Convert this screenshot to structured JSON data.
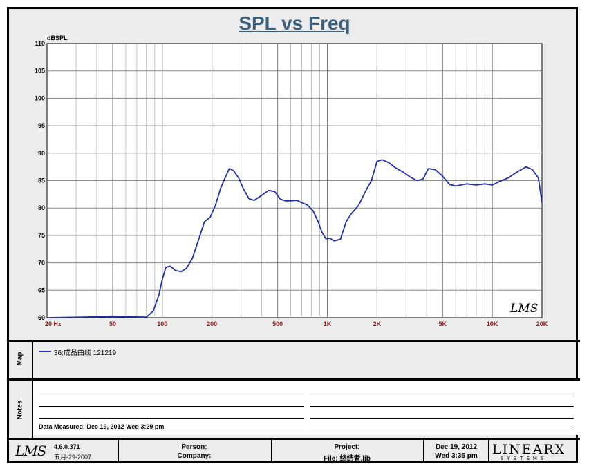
{
  "chart_data": {
    "type": "line",
    "title": "SPL vs Freq",
    "ylabel": "dBSPL",
    "xscale": "log",
    "xlim": [
      20,
      20000
    ],
    "ylim": [
      60,
      110
    ],
    "grid": true,
    "yticks": [
      60,
      65,
      70,
      75,
      80,
      85,
      90,
      95,
      100,
      105,
      110
    ],
    "xtick_labels": [
      {
        "value": 20,
        "label": "20  Hz"
      },
      {
        "value": 50,
        "label": "50"
      },
      {
        "value": 100,
        "label": "100"
      },
      {
        "value": 200,
        "label": "200"
      },
      {
        "value": 500,
        "label": "500"
      },
      {
        "value": 1000,
        "label": "1K"
      },
      {
        "value": 2000,
        "label": "2K"
      },
      {
        "value": 5000,
        "label": "5K"
      },
      {
        "value": 10000,
        "label": "10K"
      },
      {
        "value": 20000,
        "label": "20K"
      }
    ],
    "series": [
      {
        "name": "36:成品曲线  121219",
        "color": "#1f2fb0",
        "x": [
          20,
          50,
          80,
          88,
          95,
          100,
          105,
          112,
          120,
          130,
          140,
          152,
          165,
          180,
          195,
          210,
          225,
          240,
          255,
          270,
          290,
          310,
          335,
          360,
          400,
          440,
          480,
          520,
          560,
          600,
          650,
          700,
          760,
          820,
          880,
          930,
          980,
          1030,
          1100,
          1200,
          1300,
          1400,
          1550,
          1700,
          1850,
          2000,
          2150,
          2350,
          2600,
          2900,
          3200,
          3500,
          3800,
          4100,
          4500,
          5000,
          5500,
          6000,
          7000,
          8000,
          9000,
          10000,
          11000,
          12500,
          14000,
          16000,
          17500,
          19000,
          20000
        ],
        "y": [
          60.0,
          60.2,
          60.1,
          61.2,
          64.0,
          67.0,
          69.2,
          69.4,
          68.6,
          68.4,
          69.0,
          70.8,
          74.0,
          77.5,
          78.3,
          80.5,
          83.5,
          85.5,
          87.2,
          86.8,
          85.5,
          83.5,
          81.7,
          81.4,
          82.3,
          83.2,
          83.0,
          81.6,
          81.3,
          81.3,
          81.4,
          81.0,
          80.5,
          79.5,
          77.5,
          75.5,
          74.4,
          74.5,
          74.0,
          74.3,
          77.5,
          79.0,
          80.5,
          83.0,
          85.0,
          88.5,
          88.8,
          88.3,
          87.3,
          86.5,
          85.6,
          85.0,
          85.3,
          87.2,
          87.0,
          85.8,
          84.3,
          84.0,
          84.4,
          84.2,
          84.4,
          84.2,
          84.8,
          85.5,
          86.5,
          87.5,
          87.0,
          85.5,
          81.0
        ]
      }
    ]
  },
  "watermark": "LMS",
  "map": {
    "label": "Map",
    "legend": "36:成品曲线  121219"
  },
  "notes": {
    "label": "Notes",
    "measured": "Data Measured: Dec 19, 2012  Wed  3:29 pm"
  },
  "footer": {
    "logo": "LMS",
    "version": "4.6.0.371",
    "build_date": "五月-29-2007",
    "person_label": "Person:",
    "company_label": "Company:",
    "project_label": "Project:",
    "file_label": "File: 终结者.lib",
    "date": "Dec 19, 2012",
    "time": "Wed  3:36 pm",
    "brand": "LINEARX",
    "brand_sub": "SYSTEMS"
  }
}
